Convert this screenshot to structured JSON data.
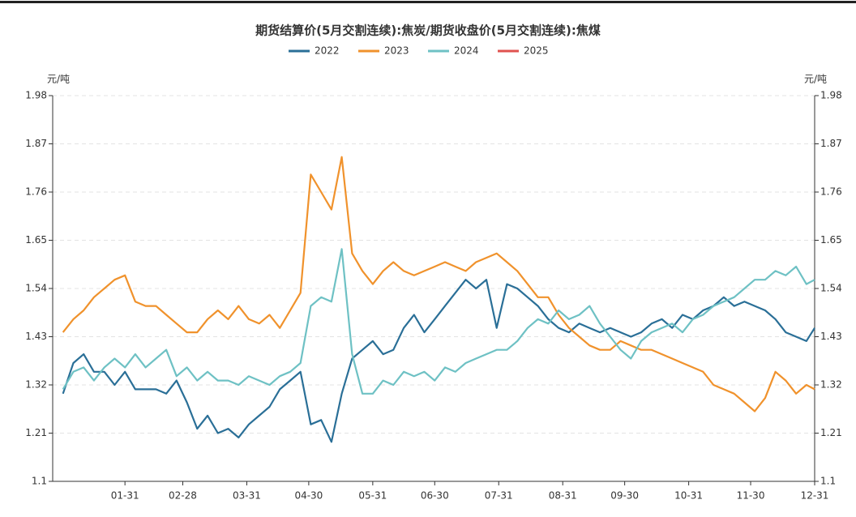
{
  "chart_data": {
    "type": "line",
    "title": "期货结算价(5月交割连续):焦炭/期货收盘价(5月交割连续):焦煤",
    "y_label": "元/吨",
    "x": [
      1,
      6,
      11,
      16,
      21,
      26,
      31,
      36,
      41,
      46,
      51,
      56,
      61,
      66,
      71,
      76,
      81,
      86,
      91,
      96,
      101,
      106,
      111,
      116,
      121,
      126,
      131,
      136,
      141,
      146,
      151,
      156,
      161,
      166,
      171,
      176,
      181,
      186,
      191,
      196,
      201,
      206,
      211,
      216,
      221,
      226,
      231,
      236,
      241,
      246,
      251,
      256,
      261,
      266,
      271,
      276,
      281,
      286,
      291,
      296,
      301,
      306,
      311,
      316,
      321,
      326,
      331,
      336,
      341,
      346,
      351,
      356,
      361,
      365
    ],
    "xlim": [
      -4,
      365
    ],
    "xticks": [
      {
        "value": 31,
        "label": "01-31"
      },
      {
        "value": 59,
        "label": "02-28"
      },
      {
        "value": 90,
        "label": "03-31"
      },
      {
        "value": 120,
        "label": "04-30"
      },
      {
        "value": 151,
        "label": "05-31"
      },
      {
        "value": 181,
        "label": "06-30"
      },
      {
        "value": 212,
        "label": "07-31"
      },
      {
        "value": 243,
        "label": "08-31"
      },
      {
        "value": 273,
        "label": "09-30"
      },
      {
        "value": 304,
        "label": "10-31"
      },
      {
        "value": 334,
        "label": "11-30"
      },
      {
        "value": 365,
        "label": "12-31"
      }
    ],
    "ylim": [
      1.1,
      1.98
    ],
    "yticks": [
      1.1,
      1.21,
      1.32,
      1.43,
      1.54,
      1.65,
      1.76,
      1.87,
      1.98
    ],
    "grid": true,
    "legend": "top",
    "series": [
      {
        "name": "2022",
        "color": "#2a6f97",
        "values": [
          1.3,
          1.37,
          1.39,
          1.35,
          1.35,
          1.32,
          1.35,
          1.31,
          1.31,
          1.31,
          1.3,
          1.33,
          1.28,
          1.22,
          1.25,
          1.21,
          1.22,
          1.2,
          1.23,
          1.25,
          1.27,
          1.31,
          1.33,
          1.35,
          1.23,
          1.24,
          1.19,
          1.3,
          1.38,
          1.4,
          1.42,
          1.39,
          1.4,
          1.45,
          1.48,
          1.44,
          1.47,
          1.5,
          1.53,
          1.56,
          1.54,
          1.56,
          1.45,
          1.55,
          1.54,
          1.52,
          1.5,
          1.47,
          1.45,
          1.44,
          1.46,
          1.45,
          1.44,
          1.45,
          1.44,
          1.43,
          1.44,
          1.46,
          1.47,
          1.45,
          1.48,
          1.47,
          1.49,
          1.5,
          1.52,
          1.5,
          1.51,
          1.5,
          1.49,
          1.47,
          1.44,
          1.43,
          1.42,
          1.45
        ]
      },
      {
        "name": "2023",
        "color": "#f0922c",
        "values": [
          1.44,
          1.47,
          1.49,
          1.52,
          1.54,
          1.56,
          1.57,
          1.51,
          1.5,
          1.5,
          1.48,
          1.46,
          1.44,
          1.44,
          1.47,
          1.49,
          1.47,
          1.5,
          1.47,
          1.46,
          1.48,
          1.45,
          1.49,
          1.53,
          1.8,
          1.76,
          1.72,
          1.84,
          1.62,
          1.58,
          1.55,
          1.58,
          1.6,
          1.58,
          1.57,
          1.58,
          1.59,
          1.6,
          1.59,
          1.58,
          1.6,
          1.61,
          1.62,
          1.6,
          1.58,
          1.55,
          1.52,
          1.52,
          1.48,
          1.45,
          1.43,
          1.41,
          1.4,
          1.4,
          1.42,
          1.41,
          1.4,
          1.4,
          1.39,
          1.38,
          1.37,
          1.36,
          1.35,
          1.32,
          1.31,
          1.3,
          1.28,
          1.26,
          1.29,
          1.35,
          1.33,
          1.3,
          1.32,
          1.31
        ]
      },
      {
        "name": "2024",
        "color": "#6ec1c4",
        "values": [
          1.31,
          1.35,
          1.36,
          1.33,
          1.36,
          1.38,
          1.36,
          1.39,
          1.36,
          1.38,
          1.4,
          1.34,
          1.36,
          1.33,
          1.35,
          1.33,
          1.33,
          1.32,
          1.34,
          1.33,
          1.32,
          1.34,
          1.35,
          1.37,
          1.5,
          1.52,
          1.51,
          1.63,
          1.39,
          1.3,
          1.3,
          1.33,
          1.32,
          1.35,
          1.34,
          1.35,
          1.33,
          1.36,
          1.35,
          1.37,
          1.38,
          1.39,
          1.4,
          1.4,
          1.42,
          1.45,
          1.47,
          1.46,
          1.49,
          1.47,
          1.48,
          1.5,
          1.46,
          1.43,
          1.4,
          1.38,
          1.42,
          1.44,
          1.45,
          1.46,
          1.44,
          1.47,
          1.48,
          1.5,
          1.51,
          1.52,
          1.54,
          1.56,
          1.56,
          1.58,
          1.57,
          1.59,
          1.55,
          1.56
        ]
      },
      {
        "name": "2025",
        "color": "#e0524f",
        "values": [
          null,
          null,
          null,
          null,
          null,
          null,
          null,
          null,
          null,
          null,
          null,
          null,
          null,
          null,
          null,
          null,
          null,
          null,
          null,
          null,
          null,
          null,
          null,
          null,
          null,
          null,
          null,
          null,
          null,
          null,
          null,
          null,
          null,
          null,
          null,
          null,
          null,
          null,
          null,
          null,
          null,
          null,
          null,
          null,
          null,
          null,
          null,
          null,
          null,
          null,
          null,
          null,
          null,
          null,
          null,
          null,
          null,
          null,
          null,
          null,
          null,
          null,
          null,
          null,
          null,
          null,
          null,
          null,
          null,
          null,
          null,
          null,
          null,
          null
        ]
      }
    ]
  }
}
